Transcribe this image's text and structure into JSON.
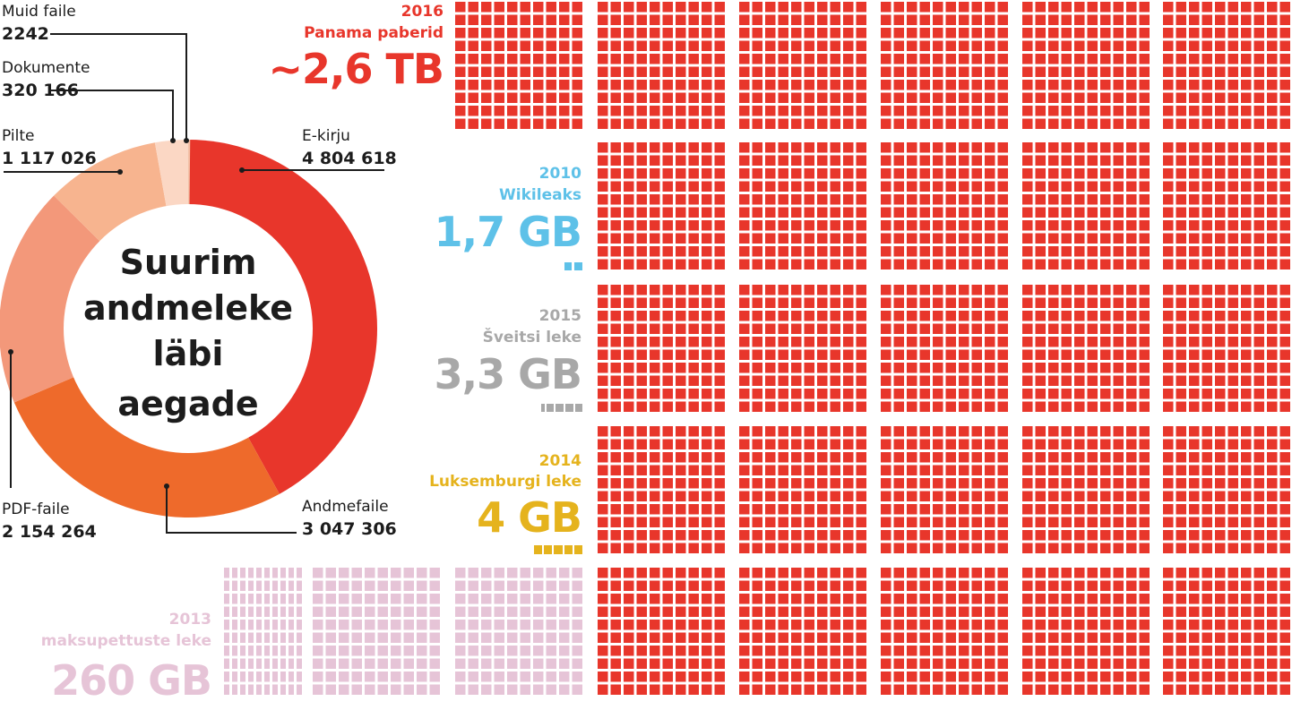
{
  "chart_data": [
    {
      "type": "pie",
      "title_lines": [
        "Suurim",
        "andmeleke",
        "läbi",
        "aegade"
      ],
      "slices": [
        {
          "label": "E-kirju",
          "value_text": "4 804 618",
          "value": 4804618,
          "color": "#e8362b"
        },
        {
          "label": "Andmefaile",
          "value_text": "3 047 306",
          "value": 3047306,
          "color": "#ee6a2b"
        },
        {
          "label": "PDF-faile",
          "value_text": "2 154 264",
          "value": 2154264,
          "color": "#f3987a"
        },
        {
          "label": "Pilte",
          "value_text": "1 117 026",
          "value": 1117026,
          "color": "#f7b48f"
        },
        {
          "label": "Dokumente",
          "value_text": "320 166",
          "value": 320166,
          "color": "#fbd7c4"
        },
        {
          "label": "Muid faile",
          "value_text": "2242",
          "value": 2242,
          "color": "#f3c1a6"
        }
      ]
    },
    {
      "type": "bar",
      "leaks": [
        {
          "year": "2016",
          "name": "Panama paberid",
          "size_text": "~2,6 TB",
          "size_gb": 2600,
          "color": "#e8362b"
        },
        {
          "year": "2010",
          "name": "Wikileaks",
          "size_text": "1,7 GB",
          "size_gb": 1.7,
          "color": "#5ec1e8"
        },
        {
          "year": "2015",
          "name": "Šveitsi leke",
          "size_text": "3,3 GB",
          "size_gb": 3.3,
          "color": "#a8a8a8"
        },
        {
          "year": "2014",
          "name": "Luksemburgi leke",
          "size_text": "4 GB",
          "size_gb": 4,
          "color": "#e5b31d"
        },
        {
          "year": "2013",
          "name": "maksupettuste leke",
          "size_text": "260 GB",
          "size_gb": 260,
          "color": "#e6c4d7"
        }
      ]
    }
  ]
}
